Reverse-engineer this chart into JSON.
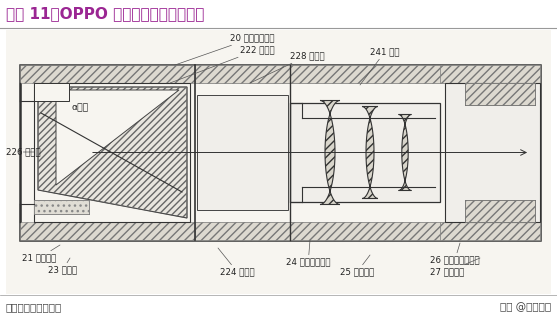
{
  "title": "图表 11：OPPO 的潜望式摄像头专利图",
  "title_color": "#9B2693",
  "title_fontsize": 11,
  "bg_color": "#f5f5f5",
  "footer_left": "资料来源：新浪数码",
  "footer_right": "头条 @未来智库",
  "footer_fontsize": 7.5,
  "lc": "#444444",
  "lw": 0.8,
  "afs": 6.2,
  "diagram_bg": "#f0eeea",
  "hatch_color": "#888888"
}
